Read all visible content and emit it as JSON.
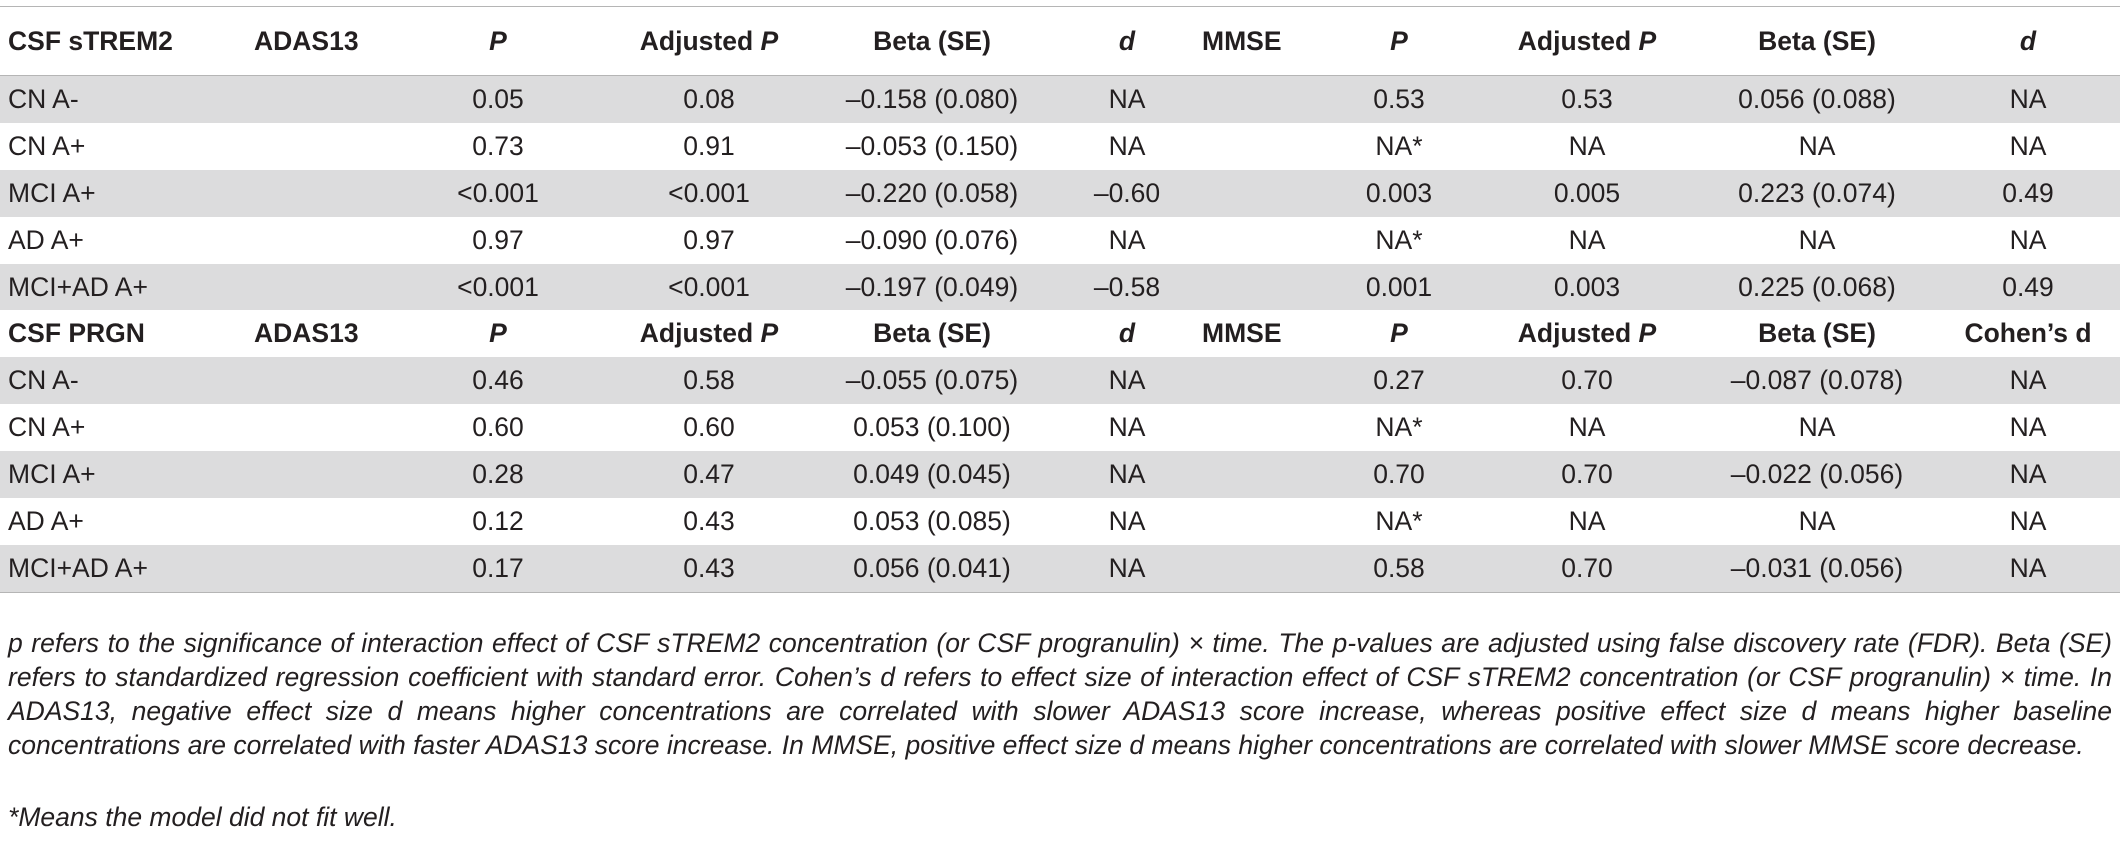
{
  "sections": [
    {
      "header": [
        "CSF sTREM2",
        "ADAS13",
        "P",
        "Adjusted P",
        "Beta (SE)",
        "d",
        "MMSE",
        "P",
        "Adjusted P",
        "Beta (SE)",
        "d"
      ],
      "rows": [
        [
          "CN A-",
          "",
          "0.05",
          "0.08",
          "–0.158 (0.080)",
          "NA",
          "",
          "0.53",
          "0.53",
          "0.056 (0.088)",
          "NA"
        ],
        [
          "CN A+",
          "",
          "0.73",
          "0.91",
          "–0.053 (0.150)",
          "NA",
          "",
          "NA*",
          "NA",
          "NA",
          "NA"
        ],
        [
          "MCI A+",
          "",
          "<0.001",
          "<0.001",
          "–0.220 (0.058)",
          "–0.60",
          "",
          "0.003",
          "0.005",
          "0.223 (0.074)",
          "0.49"
        ],
        [
          "AD A+",
          "",
          "0.97",
          "0.97",
          "–0.090 (0.076)",
          "NA",
          "",
          "NA*",
          "NA",
          "NA",
          "NA"
        ],
        [
          "MCI+AD A+",
          "",
          "<0.001",
          "<0.001",
          "–0.197 (0.049)",
          "–0.58",
          "",
          "0.001",
          "0.003",
          "0.225 (0.068)",
          "0.49"
        ]
      ]
    },
    {
      "header": [
        "CSF PRGN",
        "ADAS13",
        "P",
        "Adjusted P",
        "Beta (SE)",
        "d",
        "MMSE",
        "P",
        "Adjusted P",
        "Beta (SE)",
        "Cohen’s d"
      ],
      "rows": [
        [
          "CN A-",
          "",
          "0.46",
          "0.58",
          "–0.055 (0.075)",
          "NA",
          "",
          "0.27",
          "0.70",
          "–0.087 (0.078)",
          "NA"
        ],
        [
          "CN A+",
          "",
          "0.60",
          "0.60",
          "0.053 (0.100)",
          "NA",
          "",
          "NA*",
          "NA",
          "NA",
          "NA"
        ],
        [
          "MCI A+",
          "",
          "0.28",
          "0.47",
          "0.049 (0.045)",
          "NA",
          "",
          "0.70",
          "0.70",
          "–0.022 (0.056)",
          "NA"
        ],
        [
          "AD A+",
          "",
          "0.12",
          "0.43",
          "0.053 (0.085)",
          "NA",
          "",
          "NA*",
          "NA",
          "NA",
          "NA"
        ],
        [
          "MCI+AD A+",
          "",
          "0.17",
          "0.43",
          "0.056 (0.041)",
          "NA",
          "",
          "0.58",
          "0.70",
          "–0.031 (0.056)",
          "NA"
        ]
      ]
    }
  ],
  "footnote": "p refers to the significance of interaction effect of CSF sTREM2 concentration (or CSF progranulin) × time. The p-values are adjusted using false discovery rate (FDR). Beta (SE) refers to standardized regression coefficient with standard error. Cohen’s d refers to effect size of interaction effect of CSF sTREM2 concentration (or CSF progranulin) × time. In ADAS13, negative effect size d means higher concentrations are correlated with slower ADAS13 score increase, whereas positive effect size d means higher baseline concentrations are correlated with faster ADAS13 score increase. In MMSE, positive effect size d means higher concentrations are correlated with slower MMSE score decrease.",
  "footnote_star": "*Means the model did not fit well."
}
